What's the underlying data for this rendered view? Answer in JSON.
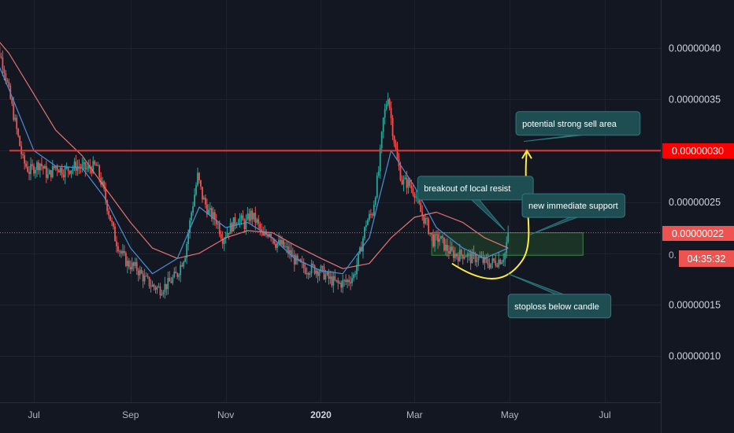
{
  "chart_data": {
    "type": "candlestick",
    "title": "",
    "xlabel": "",
    "ylabel": "",
    "ylim": [
      6.5e-09,
      4.35e-08
    ],
    "grid": true,
    "x_ticks": [
      {
        "label": "Jul",
        "date": "2019-07-01",
        "bold": false
      },
      {
        "label": "Sep",
        "date": "2019-09-01",
        "bold": false
      },
      {
        "label": "Nov",
        "date": "2019-11-01",
        "bold": false
      },
      {
        "label": "2020",
        "date": "2020-01-01",
        "bold": true
      },
      {
        "label": "Mar",
        "date": "2020-03-01",
        "bold": false
      },
      {
        "label": "May",
        "date": "2020-05-01",
        "bold": false
      },
      {
        "label": "Jul",
        "date": "2020-07-01",
        "bold": false
      }
    ],
    "y_ticks": [
      {
        "label": "0.00000040",
        "value": 4e-07
      },
      {
        "label": "0.00000035",
        "value": 3.5e-07
      },
      {
        "label": "0.00000025",
        "value": 2.5e-07
      },
      {
        "label": "0.00000015",
        "value": 1.5e-07
      },
      {
        "label": "0.00000010",
        "value": 1e-07
      }
    ],
    "price_path": [
      [
        "2019-06-04",
        4.11e-07
      ],
      [
        "2019-06-08",
        4e-07
      ],
      [
        "2019-06-12",
        3.8e-07
      ],
      [
        "2019-06-16",
        3.5e-07
      ],
      [
        "2019-06-20",
        3.2e-07
      ],
      [
        "2019-06-24",
        2.9e-07
      ],
      [
        "2019-06-28",
        2.8e-07
      ],
      [
        "2019-07-05",
        2.88e-07
      ],
      [
        "2019-07-10",
        2.75e-07
      ],
      [
        "2019-07-15",
        2.85e-07
      ],
      [
        "2019-07-20",
        2.8e-07
      ],
      [
        "2019-07-28",
        2.85e-07
      ],
      [
        "2019-08-04",
        2.82e-07
      ],
      [
        "2019-08-10",
        2.85e-07
      ],
      [
        "2019-08-14",
        2.65e-07
      ],
      [
        "2019-08-18",
        2.4e-07
      ],
      [
        "2019-08-22",
        2.15e-07
      ],
      [
        "2019-08-26",
        2e-07
      ],
      [
        "2019-08-30",
        1.9e-07
      ],
      [
        "2019-09-05",
        1.85e-07
      ],
      [
        "2019-09-10",
        1.75e-07
      ],
      [
        "2019-09-15",
        1.68e-07
      ],
      [
        "2019-09-20",
        1.65e-07
      ],
      [
        "2019-09-25",
        1.7e-07
      ],
      [
        "2019-10-01",
        1.8e-07
      ],
      [
        "2019-10-06",
        2e-07
      ],
      [
        "2019-10-10",
        2.4e-07
      ],
      [
        "2019-10-14",
        2.75e-07
      ],
      [
        "2019-10-17",
        2.55e-07
      ],
      [
        "2019-10-21",
        2.4e-07
      ],
      [
        "2019-10-26",
        2.32e-07
      ],
      [
        "2019-10-30",
        2.15e-07
      ],
      [
        "2019-11-04",
        2.25e-07
      ],
      [
        "2019-11-09",
        2.35e-07
      ],
      [
        "2019-11-13",
        2.28e-07
      ],
      [
        "2019-11-17",
        2.38e-07
      ],
      [
        "2019-11-21",
        2.3e-07
      ],
      [
        "2019-11-25",
        2.15e-07
      ],
      [
        "2019-11-29",
        2.22e-07
      ],
      [
        "2019-12-03",
        2.1e-07
      ],
      [
        "2019-12-07",
        2.08e-07
      ],
      [
        "2019-12-12",
        2e-07
      ],
      [
        "2019-12-17",
        1.9e-07
      ],
      [
        "2019-12-22",
        1.85e-07
      ],
      [
        "2019-12-27",
        1.85e-07
      ],
      [
        "2020-01-01",
        1.83e-07
      ],
      [
        "2020-01-06",
        1.75e-07
      ],
      [
        "2020-01-12",
        1.7e-07
      ],
      [
        "2020-01-17",
        1.72e-07
      ],
      [
        "2020-01-22",
        1.78e-07
      ],
      [
        "2020-01-26",
        2e-07
      ],
      [
        "2020-01-30",
        2.3e-07
      ],
      [
        "2020-02-03",
        2.4e-07
      ],
      [
        "2020-02-07",
        2.8e-07
      ],
      [
        "2020-02-10",
        3.3e-07
      ],
      [
        "2020-02-13",
        3.55e-07
      ],
      [
        "2020-02-16",
        3.2e-07
      ],
      [
        "2020-02-19",
        2.9e-07
      ],
      [
        "2020-02-22",
        2.7e-07
      ],
      [
        "2020-02-26",
        2.68e-07
      ],
      [
        "2020-03-01",
        2.6e-07
      ],
      [
        "2020-03-05",
        2.4e-07
      ],
      [
        "2020-03-09",
        2.28e-07
      ],
      [
        "2020-03-13",
        2.12e-07
      ],
      [
        "2020-03-17",
        2.15e-07
      ],
      [
        "2020-03-21",
        2.05e-07
      ],
      [
        "2020-03-25",
        2e-07
      ],
      [
        "2020-03-29",
        1.98e-07
      ],
      [
        "2020-04-02",
        2e-07
      ],
      [
        "2020-04-06",
        1.95e-07
      ],
      [
        "2020-04-10",
        1.96e-07
      ],
      [
        "2020-04-14",
        1.92e-07
      ],
      [
        "2020-04-18",
        1.9e-07
      ],
      [
        "2020-04-22",
        1.92e-07
      ],
      [
        "2020-04-26",
        1.95e-07
      ],
      [
        "2020-04-28",
        2e-07
      ],
      [
        "2020-04-30",
        2.2e-07
      ]
    ],
    "price_noise": 1.2e-08,
    "candle_up_color": "#26a69a",
    "candle_down_color": "#ef5350",
    "series": [
      {
        "color": "#e57373",
        "points": [
          [
            "2019-06-01",
            4.2e-07
          ],
          [
            "2019-06-15",
            3.95e-07
          ],
          [
            "2019-07-01",
            3.55e-07
          ],
          [
            "2019-07-15",
            3.2e-07
          ],
          [
            "2019-08-01",
            2.95e-07
          ],
          [
            "2019-08-15",
            2.65e-07
          ],
          [
            "2019-09-01",
            2.3e-07
          ],
          [
            "2019-09-15",
            2.05e-07
          ],
          [
            "2019-10-01",
            1.95e-07
          ],
          [
            "2019-10-15",
            2e-07
          ],
          [
            "2019-11-01",
            2.15e-07
          ],
          [
            "2019-11-15",
            2.22e-07
          ],
          [
            "2019-12-01",
            2.2e-07
          ],
          [
            "2019-12-15",
            2.08e-07
          ],
          [
            "2020-01-01",
            1.95e-07
          ],
          [
            "2020-01-15",
            1.85e-07
          ],
          [
            "2020-02-01",
            1.9e-07
          ],
          [
            "2020-02-15",
            2.15e-07
          ],
          [
            "2020-03-01",
            2.35e-07
          ],
          [
            "2020-03-15",
            2.4e-07
          ],
          [
            "2020-04-01",
            2.3e-07
          ],
          [
            "2020-04-15",
            2.15e-07
          ],
          [
            "2020-04-30",
            2.05e-07
          ]
        ]
      },
      {
        "color": "#4a90d9",
        "points": [
          [
            "2019-06-01",
            4.1e-07
          ],
          [
            "2019-06-15",
            3.6e-07
          ],
          [
            "2019-07-01",
            3e-07
          ],
          [
            "2019-07-15",
            2.85e-07
          ],
          [
            "2019-08-01",
            2.83e-07
          ],
          [
            "2019-08-15",
            2.55e-07
          ],
          [
            "2019-09-01",
            2.05e-07
          ],
          [
            "2019-09-15",
            1.8e-07
          ],
          [
            "2019-10-01",
            1.95e-07
          ],
          [
            "2019-10-15",
            2.45e-07
          ],
          [
            "2019-11-01",
            2.25e-07
          ],
          [
            "2019-11-15",
            2.3e-07
          ],
          [
            "2019-12-01",
            2.15e-07
          ],
          [
            "2019-12-15",
            1.95e-07
          ],
          [
            "2020-01-01",
            1.83e-07
          ],
          [
            "2020-01-15",
            1.8e-07
          ],
          [
            "2020-02-01",
            2.15e-07
          ],
          [
            "2020-02-15",
            3e-07
          ],
          [
            "2020-03-01",
            2.65e-07
          ],
          [
            "2020-03-15",
            2.25e-07
          ],
          [
            "2020-04-01",
            2.05e-07
          ],
          [
            "2020-04-15",
            1.95e-07
          ],
          [
            "2020-04-30",
            2.05e-07
          ]
        ]
      }
    ],
    "resistance_line": {
      "value": 3e-07,
      "label": "0.00000030",
      "color": "#e53935"
    },
    "current_price_line": {
      "value": 2.2e-07,
      "label": "0.00000022",
      "color": "#ef5350"
    },
    "countdown_label": "04:35:32",
    "partial_tick_label": "0.",
    "support_zone": {
      "date_from": "2020-03-12",
      "date_to": "2020-06-17",
      "high": 2.2e-07,
      "low": 1.98e-07,
      "color": "#2e7d32"
    },
    "annotations": [
      {
        "id": "sell",
        "text": "potential strong sell area",
        "box_date": "2020-05-05",
        "box_price": 3.38e-07,
        "tail_date": "2020-05-10",
        "tail_price": 3.09e-07
      },
      {
        "id": "breakout",
        "text": "breakout of local resist",
        "box_date": "2020-03-03",
        "box_price": 2.75e-07,
        "tail_date": "2020-04-28",
        "tail_price": 2.22e-07
      },
      {
        "id": "support",
        "text": "new immediate support",
        "box_date": "2020-05-09",
        "box_price": 2.58e-07,
        "tail_date": "2020-05-14",
        "tail_price": 2.18e-07
      },
      {
        "id": "stoploss",
        "text": "stoploss below candle",
        "box_date": "2020-04-30",
        "box_price": 1.6e-07,
        "tail_date": "2020-04-30",
        "tail_price": 1.8e-07
      }
    ],
    "arrow_curve": {
      "color": "#ffeb3b",
      "points": [
        [
          "2020-03-25",
          1.9e-07
        ],
        [
          "2020-04-30",
          1.7e-07
        ],
        [
          "2020-05-12",
          3e-07
        ]
      ]
    }
  }
}
